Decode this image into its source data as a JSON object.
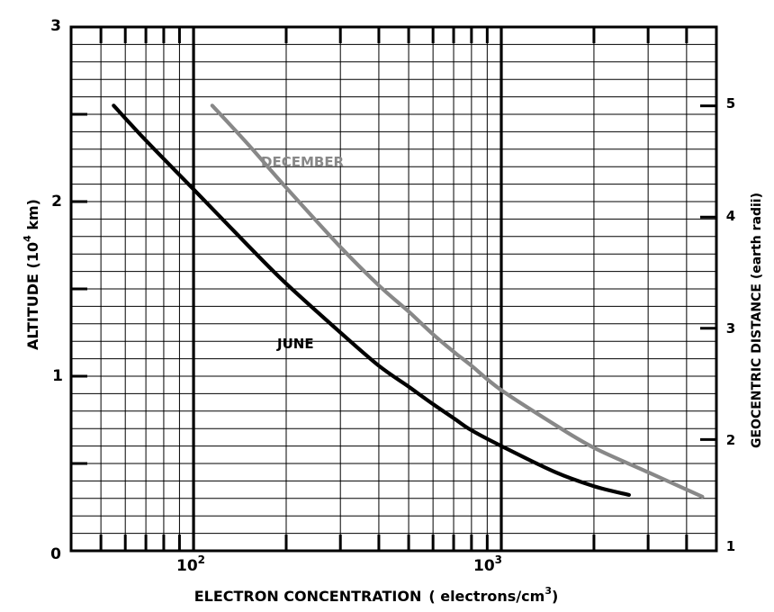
{
  "chart_data": {
    "type": "line",
    "x_scale": "log",
    "xlim": [
      40,
      5000
    ],
    "ylim": [
      0,
      3
    ],
    "xlabel_main": "ELECTRON CONCENTRATION",
    "xlabel_unit_prefix": "( electrons/cm",
    "xlabel_unit_sup": "3",
    "xlabel_unit_suffix": ")",
    "ylabel_left_prefix": "ALTITUDE (10",
    "ylabel_left_sup": "4",
    "ylabel_left_suffix": " km)",
    "ylabel_right": "GEOCENTRIC DISTANCE (earth radii)",
    "left_ticks": [
      "0",
      "1",
      "2",
      "3"
    ],
    "right_ticks": [
      "1",
      "2",
      "3",
      "4",
      "5"
    ],
    "x_ticks": [
      {
        "base": "10",
        "exp": "2",
        "value": 100
      },
      {
        "base": "10",
        "exp": "3",
        "value": 1000
      }
    ],
    "grid": true,
    "series": [
      {
        "name": "JUNE",
        "color": "#000000",
        "points": [
          [
            55,
            2.55
          ],
          [
            70,
            2.35
          ],
          [
            100,
            2.07
          ],
          [
            150,
            1.75
          ],
          [
            200,
            1.53
          ],
          [
            300,
            1.25
          ],
          [
            400,
            1.06
          ],
          [
            500,
            0.94
          ],
          [
            600,
            0.84
          ],
          [
            700,
            0.76
          ],
          [
            800,
            0.69
          ],
          [
            1000,
            0.6
          ],
          [
            1500,
            0.45
          ],
          [
            2000,
            0.37
          ],
          [
            2600,
            0.32
          ]
        ]
      },
      {
        "name": "DECEMBER",
        "color": "#888888",
        "points": [
          [
            115,
            2.55
          ],
          [
            150,
            2.33
          ],
          [
            200,
            2.08
          ],
          [
            300,
            1.74
          ],
          [
            400,
            1.52
          ],
          [
            500,
            1.37
          ],
          [
            600,
            1.24
          ],
          [
            700,
            1.14
          ],
          [
            800,
            1.06
          ],
          [
            1000,
            0.92
          ],
          [
            1500,
            0.72
          ],
          [
            2000,
            0.59
          ],
          [
            3000,
            0.45
          ],
          [
            4500,
            0.31
          ]
        ]
      }
    ]
  }
}
